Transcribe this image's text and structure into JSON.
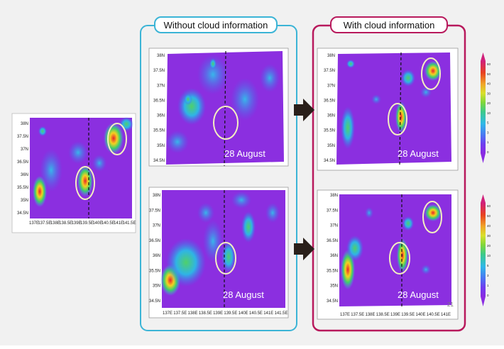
{
  "left_group": {
    "title": "Without cloud information",
    "border_color": "#3bb4d6"
  },
  "right_group": {
    "title": "With cloud information",
    "border_color": "#b8195c"
  },
  "panels": {
    "observed": {
      "lat_labels": [
        "38N",
        "37.5N",
        "37N",
        "36.5N",
        "36N",
        "35.5N",
        "35N",
        "34.5N"
      ],
      "lon_labels": [
        "137E",
        "137.5E",
        "138E",
        "138.5E",
        "139E",
        "139.5E",
        "140E",
        "140.5E",
        "141E",
        "141.5E"
      ]
    },
    "without_top": {
      "date": "28 August",
      "lat_labels": [
        "38N",
        "37.5N",
        "37N",
        "36.5N",
        "36N",
        "35.5N",
        "35N",
        "34.5N"
      ]
    },
    "without_bottom": {
      "date": "28 August",
      "lat_labels": [
        "38N",
        "37.5N",
        "37N",
        "36.5N",
        "36N",
        "35.5N",
        "35N",
        "34.5N"
      ],
      "lon_labels": [
        "137E",
        "137.5E",
        "138E",
        "138.5E",
        "139E",
        "139.5E",
        "140E",
        "140.5E",
        "141E",
        "141.5E"
      ]
    },
    "with_top": {
      "date": "28 August",
      "lat_labels": [
        "38N",
        "37.5N",
        "37N",
        "36.5N",
        "36N",
        "35.5N",
        "35N",
        "34.5N"
      ]
    },
    "with_bottom": {
      "date": "28 August",
      "lat_labels": [
        "38N",
        "37.5N",
        "37N",
        "36.5N",
        "36N",
        "35.5N",
        "35N",
        "34.5N"
      ],
      "lon_labels": [
        "137E",
        "137.5E",
        "138E",
        "138.5E",
        "139E",
        "139.5E",
        "140E",
        "140.5E",
        "141E"
      ],
      "corner_label": "21"
    }
  },
  "colorbars": {
    "top": {
      "ticks": [
        "60",
        "50",
        "40",
        "30",
        "20",
        "10",
        "5",
        "3",
        "1",
        "0"
      ]
    },
    "bottom": {
      "ticks": [
        "60",
        "50",
        "40",
        "30",
        "20",
        "10",
        "5",
        "3",
        "1",
        "0"
      ]
    }
  },
  "colors": {
    "background_field": "#8b2fe0",
    "highlight_ellipse": "#f3efc0",
    "arrow": "#2a1f1a"
  }
}
